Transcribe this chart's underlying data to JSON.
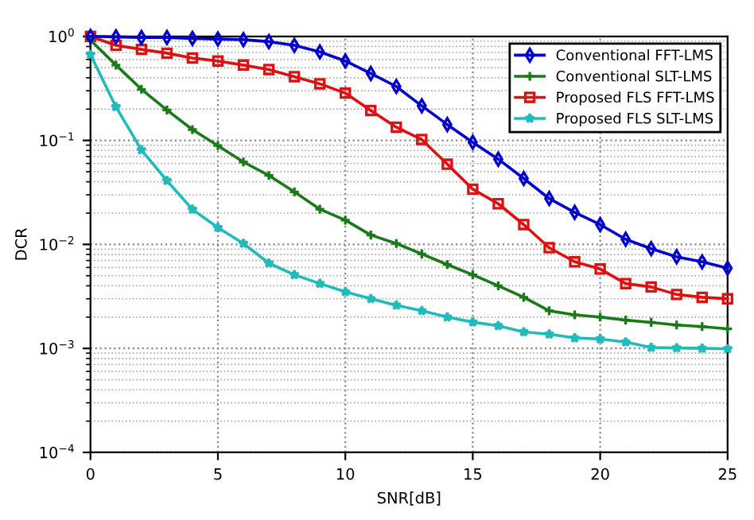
{
  "chart_data": {
    "type": "line",
    "xlabel": "SNR[dB]",
    "ylabel": "DCR",
    "log": "y",
    "grid": true,
    "legend": "top right",
    "line_style": "solid",
    "x": [
      0,
      1,
      2,
      3,
      4,
      5,
      6,
      7,
      8,
      9,
      10,
      11,
      12,
      13,
      14,
      15,
      16,
      17,
      18,
      19,
      20,
      21,
      22,
      23,
      24,
      25
    ],
    "xlim": [
      0,
      25
    ],
    "xticks": [
      0,
      5,
      10,
      15,
      20,
      25
    ],
    "ylim": [
      0.0001,
      1
    ],
    "yticks": [
      {
        "value": 0.0001,
        "label": "10$^{−4}$"
      },
      {
        "value": 0.001,
        "label": "10$^{−3}$"
      },
      {
        "value": 0.01,
        "label": "10$^{−2}$"
      },
      {
        "value": 0.1,
        "label": "10$^{−1}$"
      },
      {
        "value": 1,
        "label": "10$^{0}$"
      }
    ],
    "series": [
      {
        "name": "Conventional FFT-LMS",
        "color": "#0000cc",
        "marker": "diamond",
        "values": [
          1.0,
          0.99,
          0.976,
          0.976,
          0.956,
          0.943,
          0.93,
          0.89,
          0.82,
          0.71,
          0.58,
          0.44,
          0.33,
          0.215,
          0.142,
          0.096,
          0.066,
          0.043,
          0.0276,
          0.0203,
          0.0155,
          0.0112,
          0.0091,
          0.0076,
          0.0068,
          0.0059
        ]
      },
      {
        "name": "Conventional SLT-LMS",
        "color": "#1a7a1a",
        "marker": "cross",
        "values": [
          0.92,
          0.53,
          0.31,
          0.196,
          0.127,
          0.089,
          0.062,
          0.046,
          0.032,
          0.0218,
          0.0171,
          0.0123,
          0.0102,
          0.0081,
          0.0064,
          0.0051,
          0.004,
          0.0031,
          0.0023,
          0.0021,
          0.002,
          0.00187,
          0.00178,
          0.00168,
          0.00162,
          0.00154
        ]
      },
      {
        "name": "Proposed FLS FFT-LMS",
        "color": "#dd1111",
        "marker": "square",
        "values": [
          1.0,
          0.82,
          0.75,
          0.69,
          0.62,
          0.58,
          0.53,
          0.48,
          0.41,
          0.35,
          0.285,
          0.194,
          0.134,
          0.102,
          0.059,
          0.034,
          0.0246,
          0.0155,
          0.0093,
          0.0068,
          0.0058,
          0.0042,
          0.0039,
          0.0033,
          0.0031,
          0.003
        ]
      },
      {
        "name": "Proposed FLS SLT-LMS",
        "color": "#22bbbb",
        "marker": "star",
        "values": [
          0.67,
          0.21,
          0.081,
          0.041,
          0.0217,
          0.0145,
          0.0102,
          0.0066,
          0.0051,
          0.0042,
          0.0035,
          0.003,
          0.0026,
          0.0023,
          0.002,
          0.00179,
          0.00165,
          0.00144,
          0.00137,
          0.00126,
          0.00123,
          0.00115,
          0.00102,
          0.00101,
          0.001,
          0.00099
        ]
      }
    ]
  }
}
